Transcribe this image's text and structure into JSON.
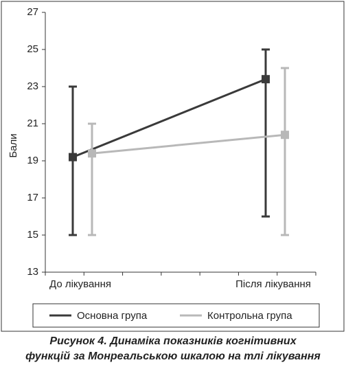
{
  "chart_data": {
    "type": "errorbar-line",
    "y_label": "Бали",
    "caption": [
      "Рисунок 4. Динаміка показників когнітивних",
      "функцій за Монреальською шкалою на тлі лікування"
    ],
    "categories": [
      "До лікування",
      "Після лікування"
    ],
    "series": [
      {
        "name": "Основна група",
        "color": "#3a3a3a",
        "values": [
          19.2,
          23.4
        ],
        "lower": [
          15,
          16
        ],
        "upper": [
          23,
          25
        ]
      },
      {
        "name": "Контрольна група",
        "color": "#b8b8b8",
        "values": [
          19.4,
          20.4
        ],
        "lower": [
          15,
          15
        ],
        "upper": [
          21,
          24
        ]
      }
    ],
    "ylim": [
      13,
      27
    ],
    "yticks": [
      13,
      15,
      17,
      19,
      21,
      23,
      25,
      27
    ],
    "grid": false
  }
}
